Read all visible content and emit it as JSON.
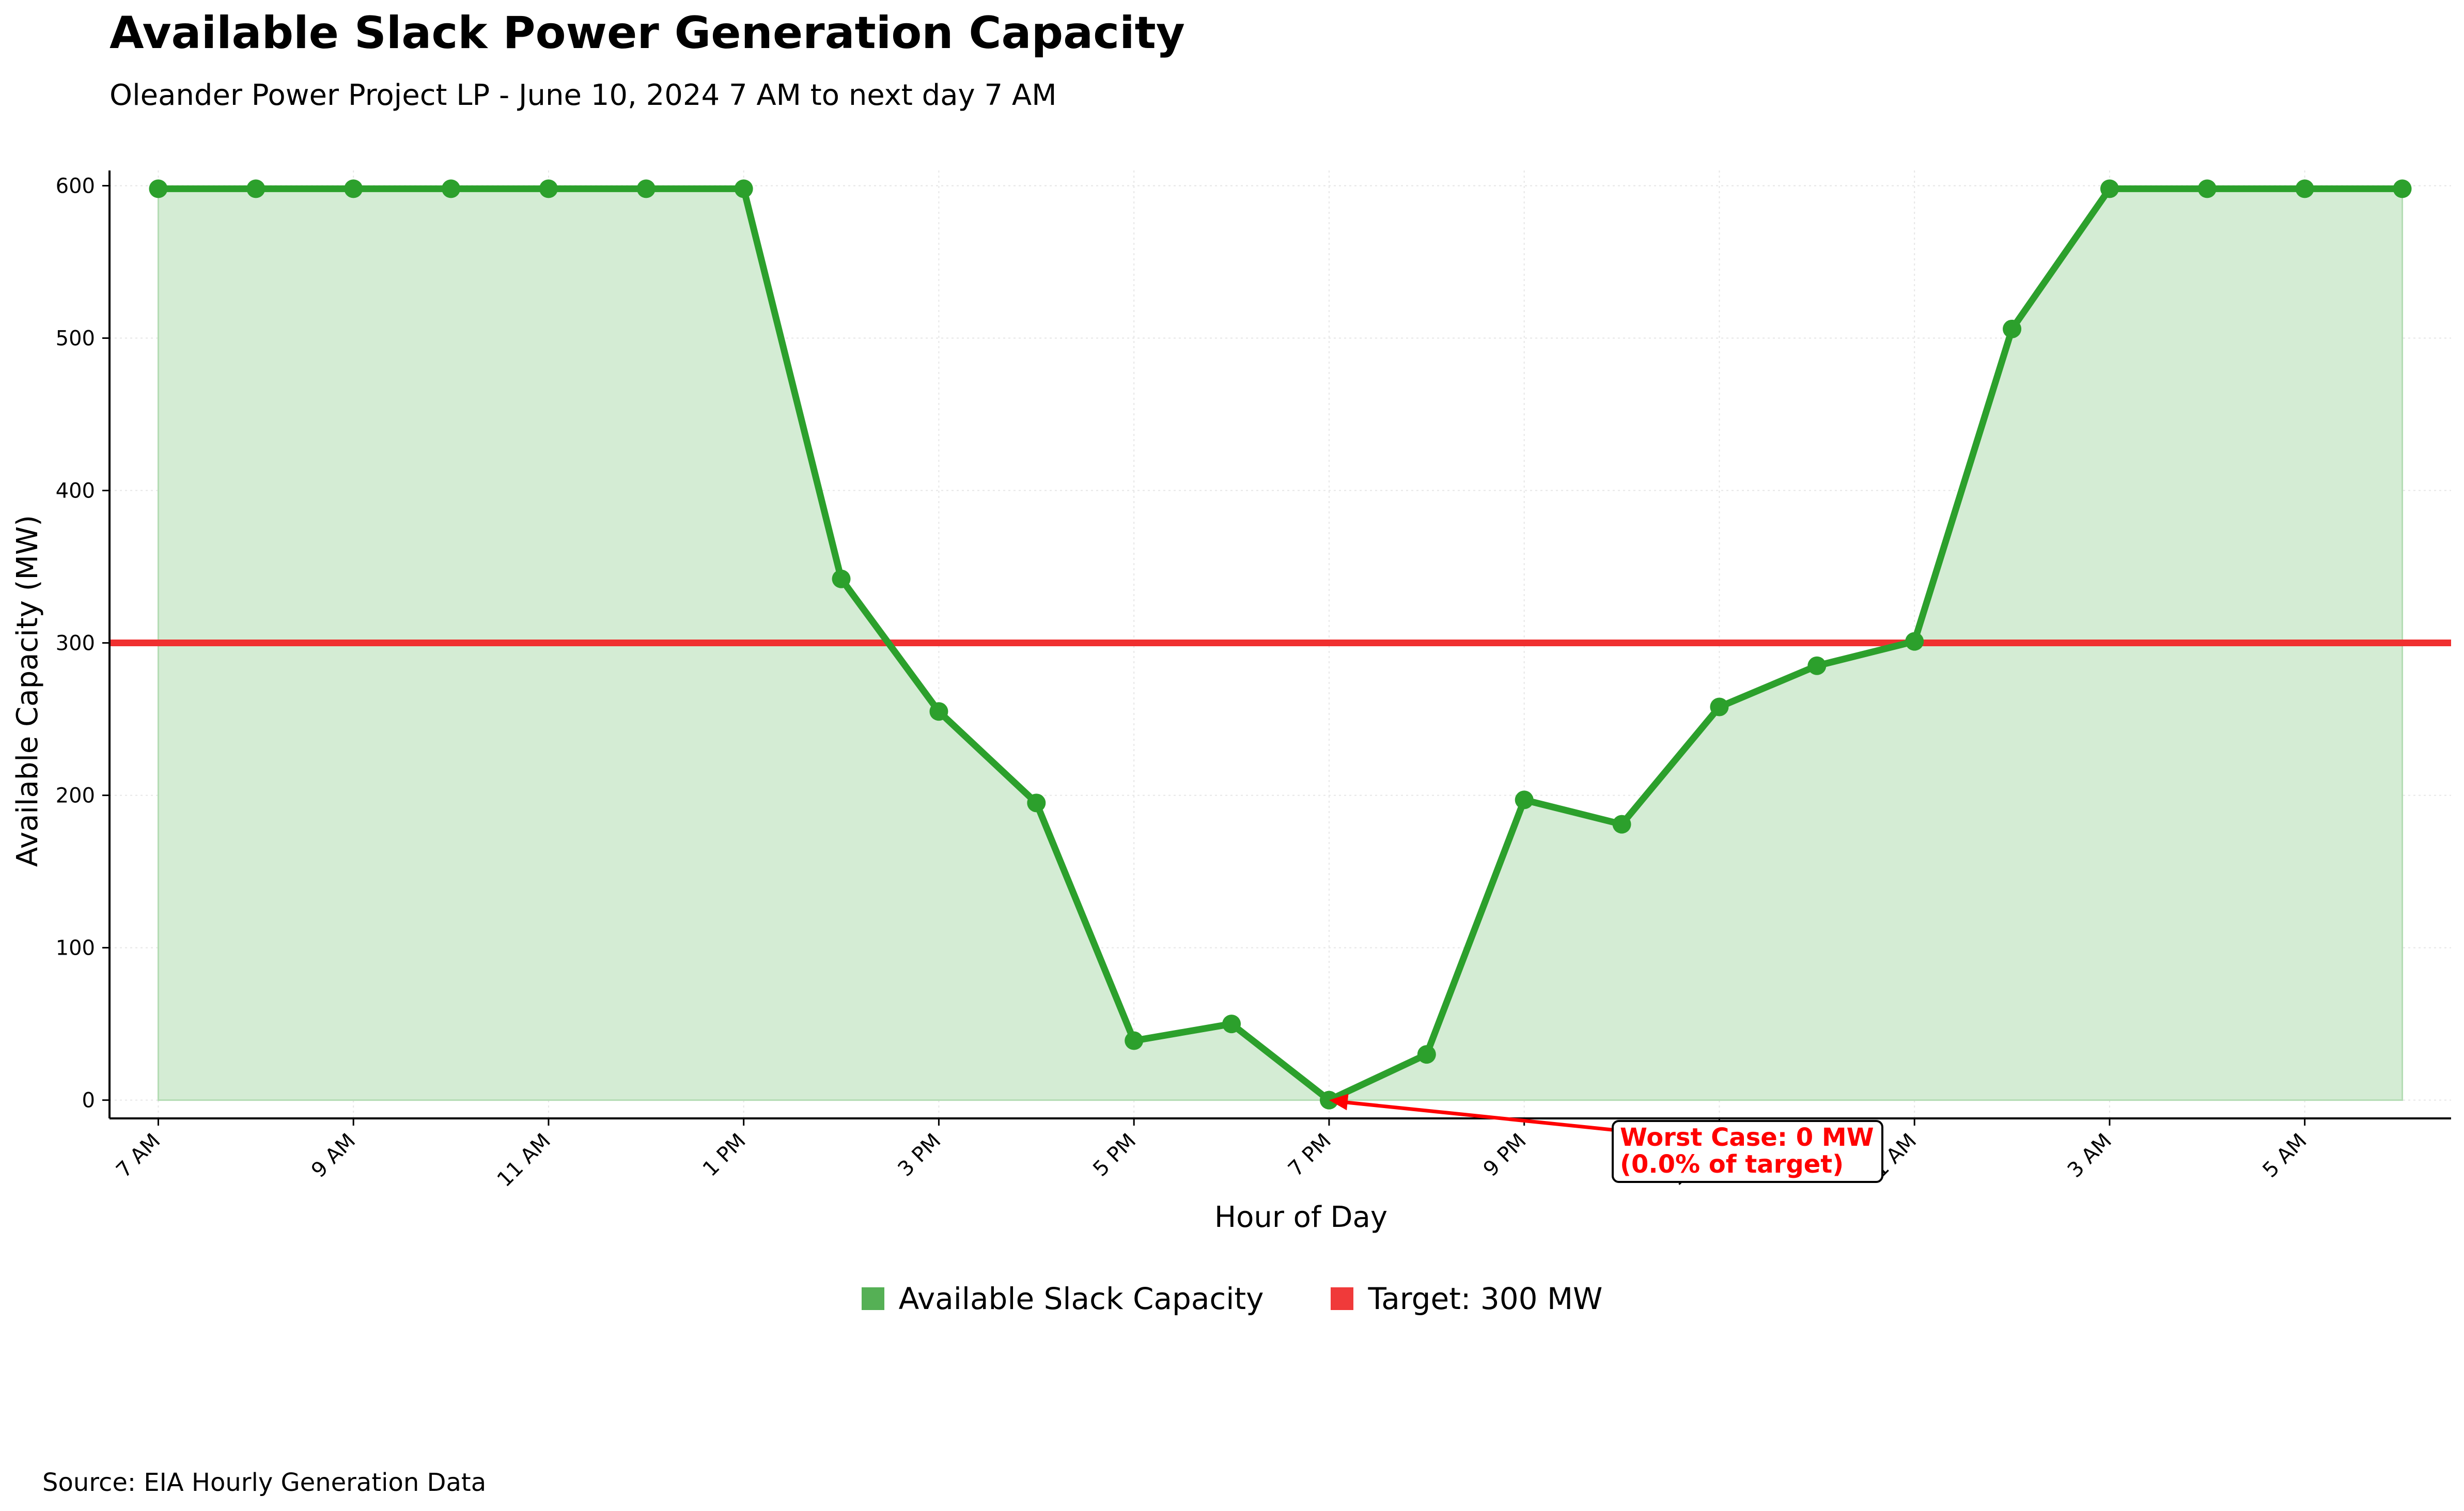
{
  "title": "Available Slack Power Generation Capacity",
  "subtitle": "Oleander Power Project LP - June 10, 2024 7 AM to next day 7 AM",
  "source": "Source: EIA Hourly Generation Data",
  "colors": {
    "series_line": "#2ca02c",
    "series_fill": "#d4ecd4",
    "target_line": "#f03030",
    "legend_capacity": "#55b055",
    "legend_target": "#f03a3a",
    "annotation": "#ff0000"
  },
  "legend": {
    "capacity_label": "Available Slack Capacity",
    "target_label": "Target: 300 MW"
  },
  "annotation": {
    "line1": "Worst Case: 0 MW",
    "line2": "(0.0% of target)",
    "point_x_index": 12,
    "point_y": 0
  },
  "chart_data": {
    "type": "line",
    "title": "Available Slack Power Generation Capacity",
    "subtitle": "Oleander Power Project LP - June 10, 2024 7 AM to next day 7 AM",
    "xlabel": "Hour of Day",
    "ylabel": "Available Capacity (MW)",
    "x_ticks": [
      "7 AM",
      "9 AM",
      "11 AM",
      "1 PM",
      "3 PM",
      "5 PM",
      "7 PM",
      "9 PM",
      "11 PM",
      "1 AM",
      "3 AM",
      "5 AM"
    ],
    "x_tick_indices": [
      0,
      2,
      4,
      6,
      8,
      10,
      12,
      14,
      16,
      18,
      20,
      22
    ],
    "y_ticks": [
      0,
      100,
      200,
      300,
      400,
      500,
      600
    ],
    "ylim": [
      -12,
      610
    ],
    "xlim": [
      -0.5,
      23.5
    ],
    "x": [
      "7 AM",
      "8 AM",
      "9 AM",
      "10 AM",
      "11 AM",
      "12 PM",
      "1 PM",
      "2 PM",
      "3 PM",
      "4 PM",
      "5 PM",
      "6 PM",
      "7 PM",
      "8 PM",
      "9 PM",
      "10 PM",
      "11 PM",
      "12 AM",
      "1 AM",
      "2 AM",
      "3 AM",
      "4 AM",
      "5 AM",
      "6 AM"
    ],
    "series": [
      {
        "name": "Available Slack Capacity",
        "values": [
          598,
          598,
          598,
          598,
          598,
          598,
          598,
          342,
          255,
          195,
          39,
          50,
          0,
          30,
          197,
          181,
          258,
          285,
          301,
          506,
          598,
          598,
          598,
          598
        ]
      }
    ],
    "target": {
      "name": "Target: 300 MW",
      "value": 300
    },
    "grid": true,
    "legend_position": "bottom-center"
  }
}
